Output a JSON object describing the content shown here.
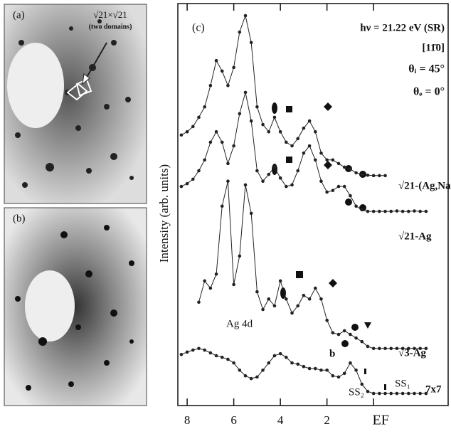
{
  "panels": {
    "a": {
      "label": "(a)",
      "annotation": "√21×√21",
      "note": "(two domains)"
    },
    "b": {
      "label": "(b)"
    }
  },
  "chart_data": {
    "type": "line",
    "panel_label": "(c)",
    "y_label": "Intensity (arb. units)",
    "annotations": {
      "photon": "hν = 21.22 eV (SR)",
      "direction": "[11̄0]",
      "theta_i": "θᵢ = 45°",
      "theta_e": "θₑ = 0°",
      "ag4d": "Ag 4d",
      "b": "b",
      "ss2": "SS₂",
      "ss1": "SS₁"
    },
    "x": [
      8.25,
      8.0,
      7.75,
      7.5,
      7.25,
      7.0,
      6.75,
      6.5,
      6.25,
      6.0,
      5.75,
      5.5,
      5.25,
      5.0,
      4.75,
      4.5,
      4.25,
      4.0,
      3.75,
      3.5,
      3.25,
      3.0,
      2.75,
      2.5,
      2.25,
      2.0,
      1.75,
      1.5,
      1.25,
      1.0,
      0.75,
      0.5,
      0.25,
      0,
      -0.25,
      -0.5,
      -0.75,
      -1.0,
      -1.25,
      -1.5,
      -1.75,
      -2.0,
      -2.25
    ],
    "xlim": [
      8.4,
      -3.2
    ],
    "xticks": [
      8,
      6,
      4,
      2,
      {
        "value": 0,
        "label": "EF"
      }
    ],
    "ylim": [
      0,
      100
    ],
    "series": [
      {
        "name": "√21-(Ag,Na)",
        "color": "#222",
        "values": [
          67.3,
          68.1,
          69.4,
          71.7,
          74.3,
          79.6,
          85.8,
          83.2,
          79.6,
          84.1,
          92.9,
          97.0,
          90.3,
          74.3,
          69.9,
          68.1,
          71.7,
          68.1,
          65.5,
          64.6,
          66.4,
          69.0,
          70.8,
          68.1,
          62.8,
          61.1,
          61.1,
          60.2,
          59.3,
          58.8,
          57.9,
          57.5,
          57.3,
          57.2,
          57.2,
          57.2,
          null,
          null,
          null,
          null,
          null,
          null,
          null
        ]
      },
      {
        "name": "√21-Ag",
        "color": "#222",
        "values": [
          54.5,
          55.2,
          56.3,
          58.4,
          61.1,
          65.5,
          68.1,
          65.5,
          60.2,
          64.6,
          72.6,
          77.9,
          70.8,
          58.4,
          55.8,
          57.5,
          59.3,
          56.6,
          54.5,
          54.9,
          58.4,
          62.8,
          64.6,
          61.1,
          55.8,
          53.1,
          53.5,
          54.5,
          54.5,
          52.2,
          49.6,
          48.7,
          48.3,
          48.3,
          48.3,
          48.3,
          48.3,
          48.4,
          48.3,
          48.3,
          48.4,
          48.3,
          48.3
        ]
      },
      {
        "name": "√3-Ag",
        "color": "#222",
        "values": [
          null,
          null,
          null,
          25.7,
          31.0,
          29.2,
          32.7,
          49.6,
          55.8,
          30.1,
          37.2,
          54.9,
          47.8,
          28.3,
          23.9,
          26.5,
          24.8,
          31.0,
          26.5,
          23.0,
          24.8,
          27.4,
          26.5,
          29.2,
          26.5,
          21.2,
          18.1,
          17.7,
          18.6,
          17.7,
          16.8,
          15.9,
          14.7,
          14.2,
          14.2,
          14.2,
          14.2,
          14.2,
          14.2,
          14.2,
          14.2,
          14.2,
          14.2
        ]
      },
      {
        "name": "7x7",
        "color": "#222",
        "values": [
          12.7,
          13.3,
          13.8,
          14.2,
          13.8,
          13.1,
          12.4,
          12.0,
          11.5,
          10.6,
          8.8,
          7.4,
          6.7,
          7.1,
          8.8,
          10.6,
          12.4,
          12.9,
          12.0,
          10.6,
          10.3,
          9.7,
          9.2,
          9.2,
          8.8,
          8.8,
          7.4,
          7.1,
          8.0,
          10.6,
          8.8,
          5.3,
          3.5,
          3.0,
          3.0,
          3.0,
          3.0,
          3.0,
          3.0,
          3.0,
          3.0,
          3.0,
          3.0
        ]
      }
    ]
  }
}
